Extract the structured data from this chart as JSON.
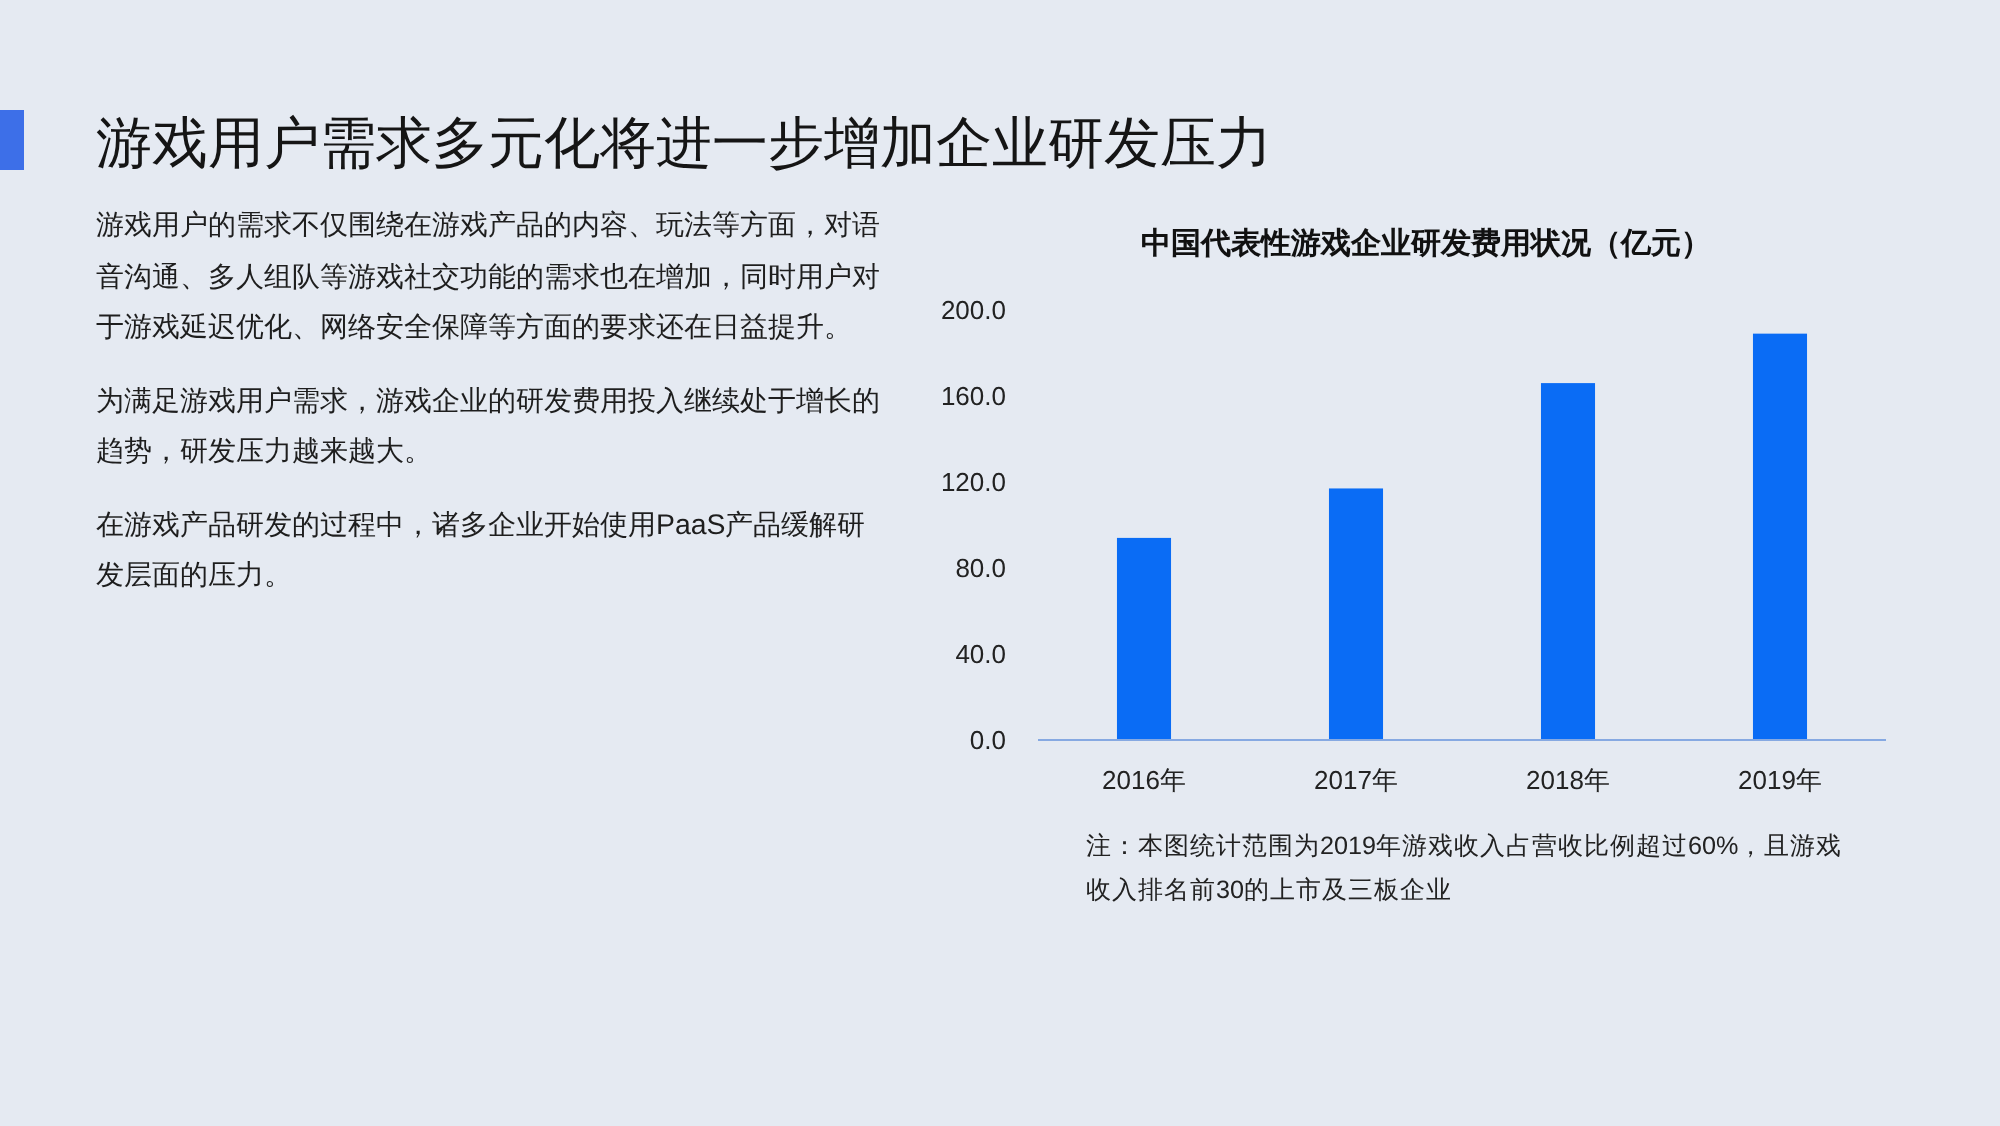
{
  "chart_data": [
    {
      "type": "other",
      "title": "游戏用户需求多元化将进一步增加企业研发压力",
      "annotations": [
        "游戏用户的需求不仅围绕在游戏产品的内容、玩法等方面，对语音沟通、多人组队等游戏社交功能的需求也在增加，同时用户对于游戏延迟优化、网络安全保障等方面的要求还在日益提升。",
        "为满足游戏用户需求，游戏企业的研发费用投入继续处于增长的趋势，研发压力越来越大。",
        "在游戏产品研发的过程中，诸多企业开始使用PaaS产品缓解研发层面的压力。"
      ]
    },
    {
      "type": "bar",
      "title": "中国代表性游戏企业研发费用状况（亿元）",
      "categories": [
        "2016年",
        "2017年",
        "2018年",
        "2019年"
      ],
      "values": [
        94,
        117,
        166,
        189
      ],
      "color": "#0a6cf5",
      "ylim": [
        0,
        200
      ],
      "yticks": [
        {
          "value": 0,
          "label": "0.0"
        },
        {
          "value": 40,
          "label": "40.0"
        },
        {
          "value": 80,
          "label": "80.0"
        },
        {
          "value": 120,
          "label": "120.0"
        },
        {
          "value": 160,
          "label": "160.0"
        },
        {
          "value": 200,
          "label": "200.0"
        }
      ],
      "annotations": [
        "注：本图统计范围为2019年游戏收入占营收比例超过60%，且游戏收入排名前30的上市及三板企业"
      ]
    }
  ]
}
